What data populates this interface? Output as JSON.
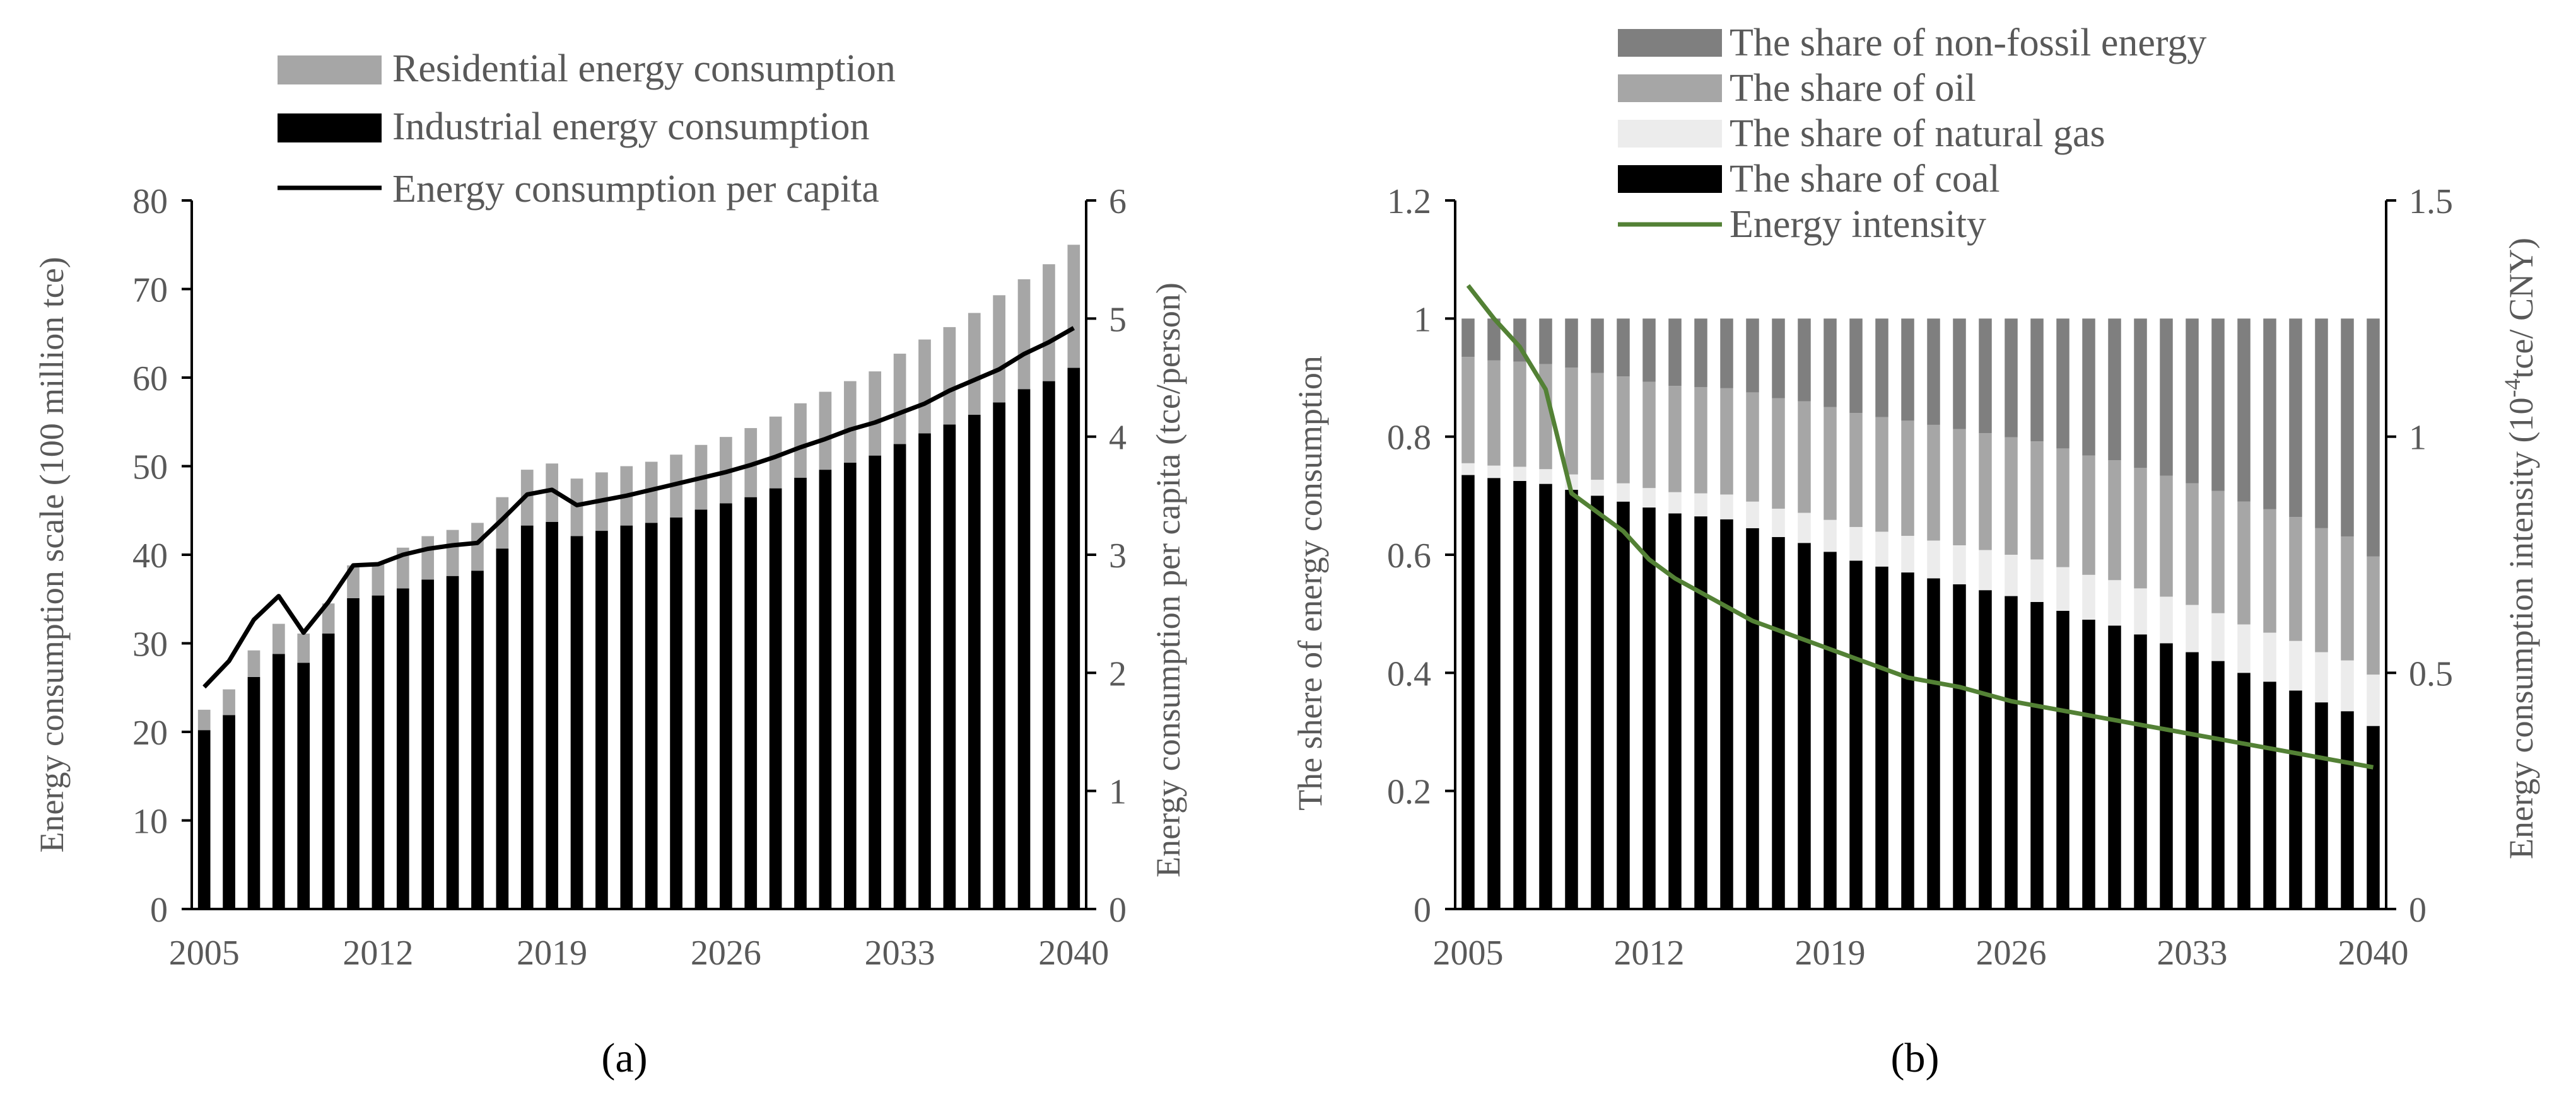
{
  "chart_data": [
    {
      "type": "bar",
      "panel_label": "(a)",
      "categories": [
        2005,
        2006,
        2007,
        2008,
        2009,
        2010,
        2011,
        2012,
        2013,
        2014,
        2015,
        2016,
        2017,
        2018,
        2019,
        2020,
        2021,
        2022,
        2023,
        2024,
        2025,
        2026,
        2027,
        2028,
        2029,
        2030,
        2031,
        2032,
        2033,
        2034,
        2035,
        2036,
        2037,
        2038,
        2039,
        2040
      ],
      "x_tick_labels": [
        "2005",
        "2012",
        "2019",
        "2026",
        "2033",
        "2040"
      ],
      "ylabel": "Energy consumption scale (100 million tce)",
      "ylim": [
        0,
        80
      ],
      "y_ticks": [
        "0",
        "10",
        "20",
        "30",
        "40",
        "50",
        "60",
        "70",
        "80"
      ],
      "y2label": "Energy consumption per capita (tce/person)",
      "y2lim": [
        0,
        6
      ],
      "y2_ticks": [
        "0",
        "1",
        "2",
        "3",
        "4",
        "5",
        "6"
      ],
      "legend": {
        "residential": "Residential energy consumption",
        "industrial": "Industrial energy consumption",
        "per_capita": "Energy consumption per capita"
      },
      "series": [
        {
          "name": "Industrial energy consumption",
          "color": "#000000",
          "values": [
            20.2,
            21.9,
            26.2,
            28.8,
            27.8,
            31.1,
            35.1,
            35.4,
            36.2,
            37.2,
            37.6,
            38.2,
            40.7,
            43.3,
            43.7,
            42.1,
            42.7,
            43.3,
            43.6,
            44.2,
            45.1,
            45.8,
            46.5,
            47.5,
            48.7,
            49.6,
            50.4,
            51.2,
            52.5,
            53.7,
            54.7,
            55.8,
            57.2,
            58.7,
            59.6,
            61.1
          ]
        },
        {
          "name": "Residential energy consumption",
          "color": "#a6a6a6",
          "values": [
            2.3,
            2.9,
            3.0,
            3.4,
            3.3,
            3.4,
            3.7,
            3.7,
            4.6,
            4.9,
            5.2,
            5.4,
            5.8,
            6.3,
            6.6,
            6.5,
            6.6,
            6.7,
            6.9,
            7.1,
            7.3,
            7.5,
            7.8,
            8.1,
            8.4,
            8.8,
            9.2,
            9.5,
            10.2,
            10.6,
            11.0,
            11.5,
            12.1,
            12.4,
            13.2,
            13.9
          ]
        },
        {
          "name": "Energy consumption per capita",
          "type": "line",
          "axis": "right",
          "color": "#000000",
          "values": [
            1.88,
            2.1,
            2.45,
            2.65,
            2.34,
            2.6,
            2.91,
            2.92,
            3.0,
            3.05,
            3.08,
            3.1,
            3.3,
            3.51,
            3.55,
            3.42,
            3.46,
            3.5,
            3.55,
            3.6,
            3.65,
            3.7,
            3.76,
            3.83,
            3.91,
            3.98,
            4.06,
            4.12,
            4.2,
            4.28,
            4.39,
            4.48,
            4.57,
            4.7,
            4.8,
            4.92
          ]
        }
      ]
    },
    {
      "type": "bar",
      "panel_label": "(b)",
      "categories": [
        2005,
        2006,
        2007,
        2008,
        2009,
        2010,
        2011,
        2012,
        2013,
        2014,
        2015,
        2016,
        2017,
        2018,
        2019,
        2020,
        2021,
        2022,
        2023,
        2024,
        2025,
        2026,
        2027,
        2028,
        2029,
        2030,
        2031,
        2032,
        2033,
        2034,
        2035,
        2036,
        2037,
        2038,
        2039,
        2040
      ],
      "x_tick_labels": [
        "2005",
        "2012",
        "2019",
        "2026",
        "2033",
        "2040"
      ],
      "ylabel": "The shere of energy consumption",
      "ylim": [
        0,
        1.2
      ],
      "y_ticks": [
        "0",
        "0.2",
        "0.4",
        "0.6",
        "0.8",
        "1",
        "1.2"
      ],
      "y2label": "Energy consumption intensity (10",
      "y2label_sup": "-4",
      "y2label_tail": "tce/ CNY)",
      "y2lim": [
        0,
        1.5
      ],
      "y2_ticks": [
        "0",
        "0.5",
        "1",
        "1.5"
      ],
      "legend": {
        "nonfossil": "The share of non-fossil energy",
        "oil": "The share of oil",
        "gas": "The share of natural gas",
        "coal": "The share of coal",
        "intensity": "Energy intensity"
      },
      "series": [
        {
          "name": "The share of coal",
          "color": "#000000",
          "values": [
            0.735,
            0.73,
            0.725,
            0.72,
            0.71,
            0.7,
            0.69,
            0.68,
            0.67,
            0.665,
            0.66,
            0.645,
            0.63,
            0.62,
            0.605,
            0.59,
            0.58,
            0.57,
            0.56,
            0.55,
            0.54,
            0.53,
            0.52,
            0.505,
            0.49,
            0.48,
            0.465,
            0.45,
            0.435,
            0.42,
            0.4,
            0.385,
            0.37,
            0.35,
            0.335,
            0.31
          ]
        },
        {
          "name": "The share of natural gas",
          "color": "#ececec",
          "values": [
            0.02,
            0.021,
            0.024,
            0.025,
            0.026,
            0.027,
            0.031,
            0.033,
            0.036,
            0.039,
            0.042,
            0.045,
            0.048,
            0.051,
            0.054,
            0.057,
            0.059,
            0.062,
            0.064,
            0.066,
            0.068,
            0.07,
            0.072,
            0.074,
            0.076,
            0.077,
            0.078,
            0.079,
            0.08,
            0.081,
            0.082,
            0.083,
            0.084,
            0.085,
            0.086,
            0.087
          ]
        },
        {
          "name": "The share of oil",
          "color": "#a6a6a6",
          "values": [
            0.18,
            0.178,
            0.178,
            0.178,
            0.181,
            0.181,
            0.181,
            0.18,
            0.18,
            0.18,
            0.18,
            0.185,
            0.187,
            0.189,
            0.191,
            0.193,
            0.194,
            0.195,
            0.196,
            0.197,
            0.198,
            0.199,
            0.2,
            0.201,
            0.202,
            0.203,
            0.204,
            0.205,
            0.206,
            0.207,
            0.208,
            0.209,
            0.21,
            0.21,
            0.21,
            0.2
          ]
        },
        {
          "name": "The share of non-fossil energy",
          "color": "#7f7f7f",
          "values": [
            0.065,
            0.071,
            0.073,
            0.077,
            0.083,
            0.092,
            0.098,
            0.107,
            0.114,
            0.116,
            0.118,
            0.125,
            0.135,
            0.14,
            0.15,
            0.16,
            0.167,
            0.173,
            0.18,
            0.187,
            0.194,
            0.201,
            0.208,
            0.22,
            0.232,
            0.24,
            0.253,
            0.266,
            0.279,
            0.292,
            0.31,
            0.323,
            0.336,
            0.355,
            0.369,
            0.403
          ]
        },
        {
          "name": "Energy intensity",
          "type": "line",
          "axis": "right",
          "color": "#538135",
          "values": [
            1.32,
            1.25,
            1.19,
            1.1,
            0.88,
            0.84,
            0.8,
            0.74,
            0.7,
            0.67,
            0.64,
            0.61,
            0.59,
            0.57,
            0.55,
            0.53,
            0.51,
            0.49,
            0.48,
            0.47,
            0.455,
            0.44,
            0.43,
            0.42,
            0.41,
            0.4,
            0.39,
            0.38,
            0.37,
            0.36,
            0.35,
            0.34,
            0.33,
            0.32,
            0.31,
            0.3
          ]
        }
      ]
    }
  ]
}
